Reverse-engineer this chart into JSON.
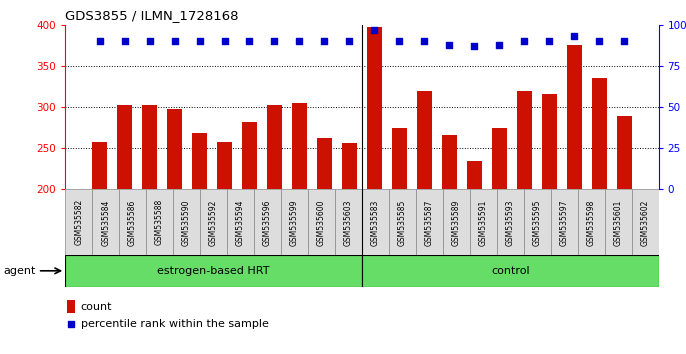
{
  "title": "GDS3855 / ILMN_1728168",
  "samples": [
    "GSM535582",
    "GSM535584",
    "GSM535586",
    "GSM535588",
    "GSM535590",
    "GSM535592",
    "GSM535594",
    "GSM535596",
    "GSM535599",
    "GSM535600",
    "GSM535603",
    "GSM535583",
    "GSM535585",
    "GSM535587",
    "GSM535589",
    "GSM535591",
    "GSM535593",
    "GSM535595",
    "GSM535597",
    "GSM535598",
    "GSM535601",
    "GSM535602"
  ],
  "count_values": [
    258,
    303,
    302,
    298,
    269,
    258,
    282,
    302,
    305,
    263,
    256,
    397,
    275,
    320,
    266,
    235,
    275,
    320,
    316,
    375,
    335,
    289
  ],
  "percentile_values": [
    90,
    90,
    90,
    90,
    90,
    90,
    90,
    90,
    90,
    90,
    90,
    97,
    90,
    90,
    88,
    87,
    88,
    90,
    90,
    93,
    90,
    90
  ],
  "group1_label": "estrogen-based HRT",
  "group2_label": "control",
  "group1_count": 11,
  "group2_count": 11,
  "bar_color": "#cc1100",
  "dot_color": "#0000cc",
  "ylim_left": [
    200,
    400
  ],
  "ylim_right": [
    0,
    100
  ],
  "yticks_left": [
    200,
    250,
    300,
    350,
    400
  ],
  "yticks_right": [
    0,
    25,
    50,
    75,
    100
  ],
  "group_color": "#66dd66",
  "legend_count_label": "count",
  "legend_pct_label": "percentile rank within the sample",
  "agent_label": "agent"
}
